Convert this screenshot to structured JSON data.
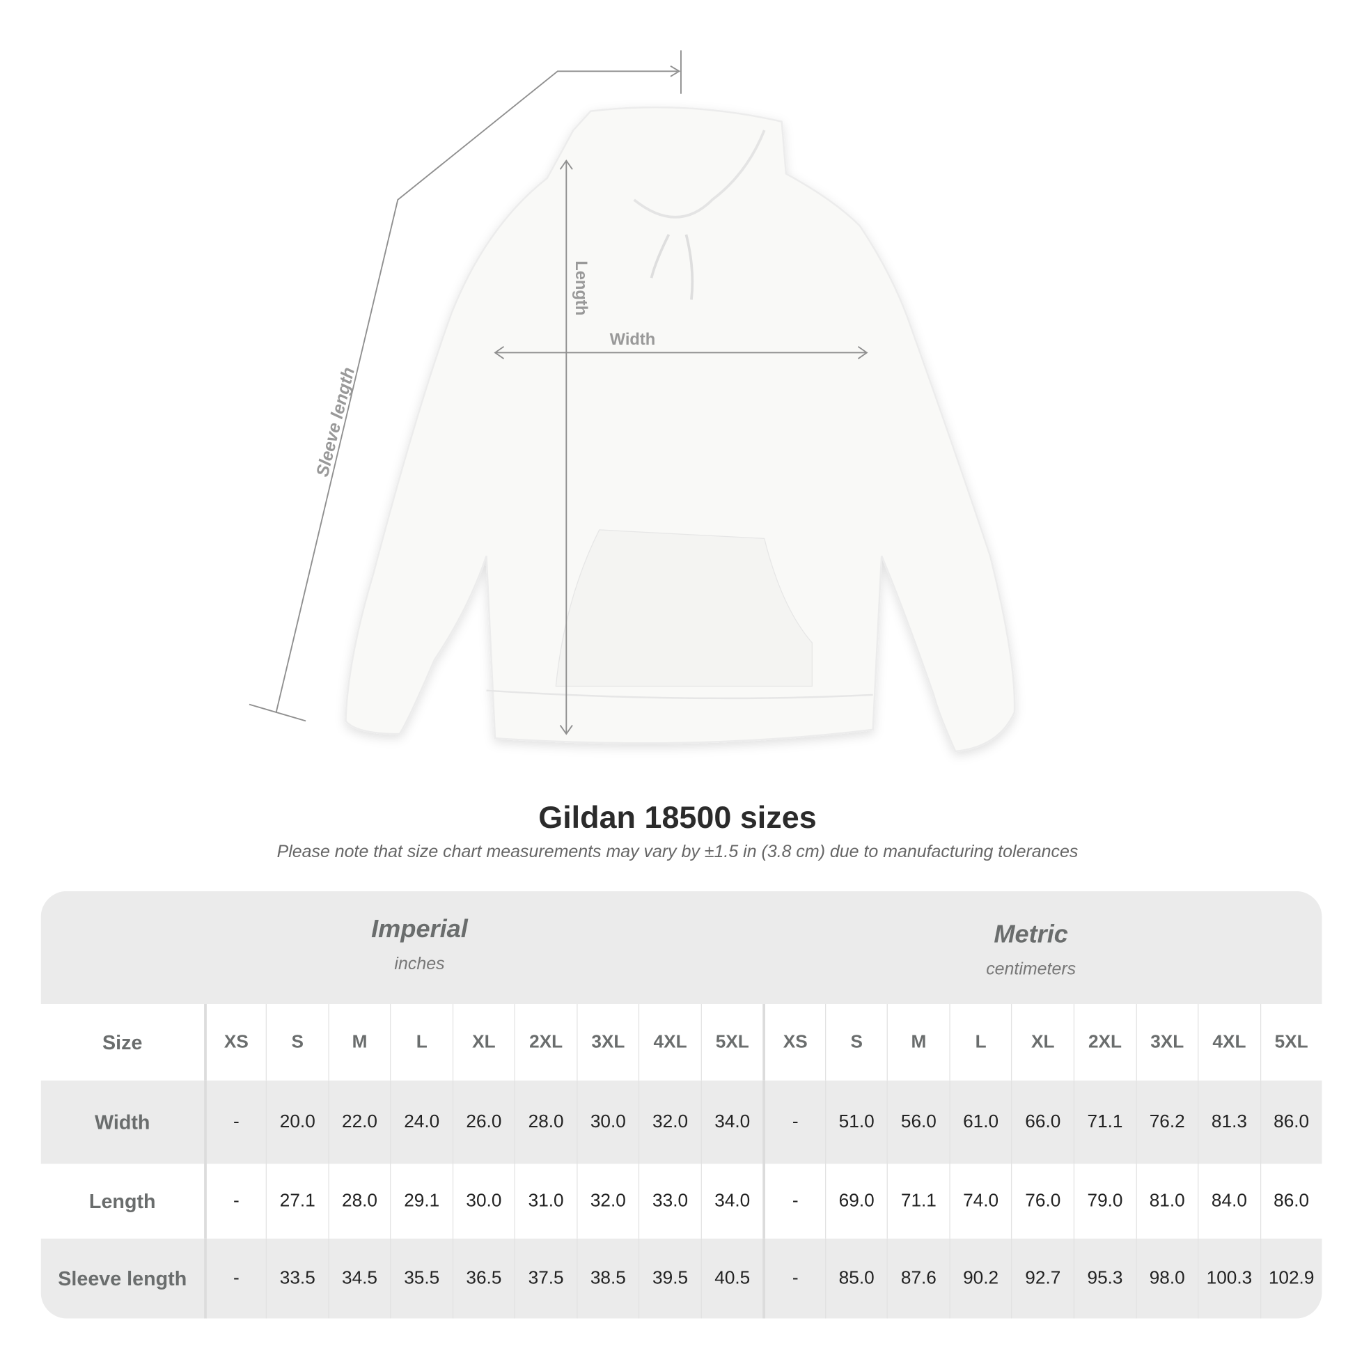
{
  "diagram": {
    "labels": {
      "length": "Length",
      "width": "Width",
      "sleeve": "Sleeve length"
    }
  },
  "title": "Gildan 18500 sizes",
  "note": "Please note that size chart measurements may vary by ±1.5 in (3.8 cm) due to manufacturing tolerances",
  "table": {
    "imperial": {
      "name": "Imperial",
      "unit": "inches"
    },
    "metric": {
      "name": "Metric",
      "unit": "centimeters"
    },
    "size_label": "Size",
    "sizes": [
      "XS",
      "S",
      "M",
      "L",
      "XL",
      "2XL",
      "3XL",
      "4XL",
      "5XL"
    ],
    "rows": [
      {
        "label": "Width",
        "imperial": [
          "-",
          "20.0",
          "22.0",
          "24.0",
          "26.0",
          "28.0",
          "30.0",
          "32.0",
          "34.0"
        ],
        "metric": [
          "-",
          "51.0",
          "56.0",
          "61.0",
          "66.0",
          "71.1",
          "76.2",
          "81.3",
          "86.0"
        ]
      },
      {
        "label": "Length",
        "imperial": [
          "-",
          "27.1",
          "28.0",
          "29.1",
          "30.0",
          "31.0",
          "32.0",
          "33.0",
          "34.0"
        ],
        "metric": [
          "-",
          "69.0",
          "71.1",
          "74.0",
          "76.0",
          "79.0",
          "81.0",
          "84.0",
          "86.0"
        ]
      },
      {
        "label": "Sleeve length",
        "imperial": [
          "-",
          "33.5",
          "34.5",
          "35.5",
          "36.5",
          "37.5",
          "38.5",
          "39.5",
          "40.5"
        ],
        "metric": [
          "-",
          "85.0",
          "87.6",
          "90.2",
          "92.7",
          "95.3",
          "98.0",
          "100.3",
          "102.9"
        ]
      }
    ]
  }
}
